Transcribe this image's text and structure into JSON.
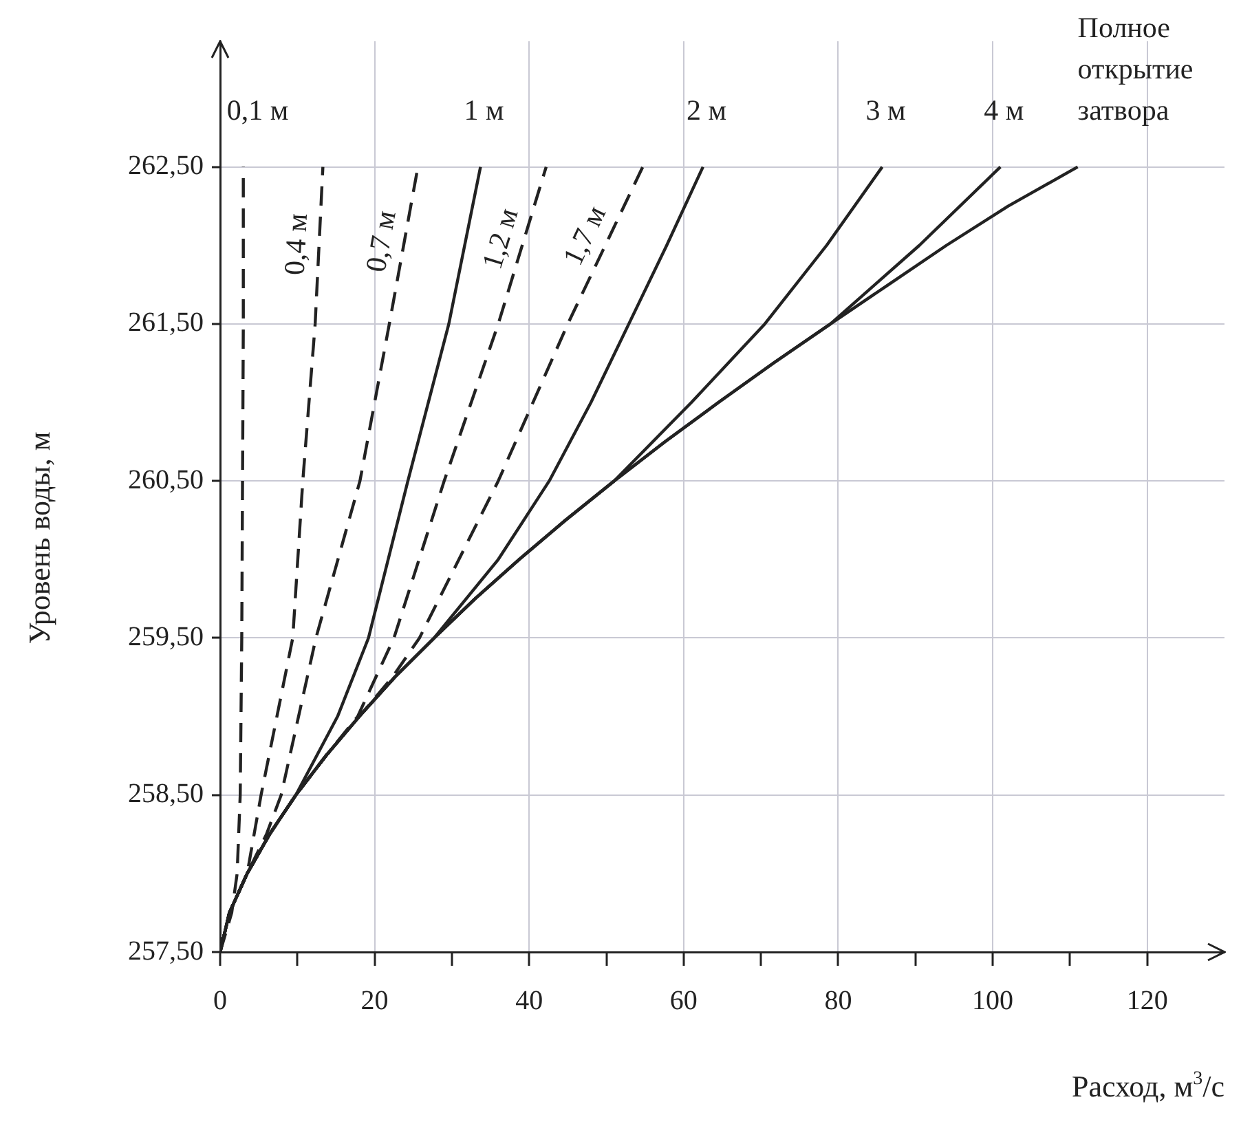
{
  "chart_data": {
    "type": "line",
    "xlabel": "Расход, м$^{3}$/с",
    "ylabel": "Уровень воды, м",
    "xlim": [
      0,
      130
    ],
    "xticks": [
      0,
      {
        "value": 10,
        "label": null
      },
      20,
      {
        "value": 30,
        "label": null
      },
      40,
      {
        "value": 50,
        "label": null
      },
      60,
      {
        "value": 70,
        "label": null
      },
      80,
      {
        "value": 90,
        "label": null
      },
      100,
      {
        "value": 110,
        "label": null
      },
      120
    ],
    "ylim": [
      257.5,
      263.3
    ],
    "yticks": [
      {
        "value": 257.5,
        "label": "257,50"
      },
      {
        "value": 258.5,
        "label": "258,50"
      },
      {
        "value": 259.5,
        "label": "259,50"
      },
      {
        "value": 260.5,
        "label": "260,50"
      },
      {
        "value": 261.5,
        "label": "261,50"
      },
      {
        "value": 262.5,
        "label": "262,50"
      }
    ],
    "grid": true,
    "legend": false,
    "marker": "none",
    "series": [
      {
        "name": "0,1 м",
        "color": "#222222",
        "line_style": "dashed",
        "x": [
          0,
          1.5,
          2.2,
          2.6,
          2.8,
          2.9,
          3.0,
          3.0
        ],
        "values": [
          257.5,
          257.75,
          258,
          258.5,
          259.5,
          260.5,
          261.5,
          262.5
        ]
      },
      {
        "name": "0,4 м",
        "color": "#222222",
        "line_style": "dashed",
        "x": [
          0,
          1.2,
          3.5,
          5.3,
          9.4,
          10.7,
          12.3,
          13.3
        ],
        "values": [
          257.5,
          257.75,
          258,
          258.5,
          259.5,
          260.5,
          261.5,
          262.5
        ]
      },
      {
        "name": "0,7 м",
        "color": "#222222",
        "line_style": "dashed",
        "x": [
          0,
          1.2,
          3.5,
          6.0,
          7.9,
          12.4,
          18.1,
          21.9,
          25.6
        ],
        "values": [
          257.5,
          257.75,
          258,
          258.25,
          258.5,
          259.5,
          260.5,
          261.5,
          262.5
        ]
      },
      {
        "name": "1 м",
        "color": "#222222",
        "line_style": "solid",
        "x": [
          0,
          1.2,
          3.5,
          6.4,
          9.8,
          15.2,
          19.2,
          24.3,
          29.6,
          33.7
        ],
        "values": [
          257.5,
          257.75,
          258,
          258.25,
          258.5,
          259,
          259.5,
          260.5,
          261.5,
          262.5
        ]
      },
      {
        "name": "1,2 м",
        "color": "#222222",
        "line_style": "dashed",
        "x": [
          0,
          1.2,
          3.5,
          6.4,
          9.8,
          13.7,
          17.8,
          22.5,
          29,
          36,
          42.2
        ],
        "values": [
          257.5,
          257.75,
          258,
          258.25,
          258.5,
          258.75,
          259,
          259.5,
          260.5,
          261.5,
          262.5
        ]
      },
      {
        "name": "1,7 м",
        "color": "#222222",
        "line_style": "dashed",
        "x": [
          0,
          1.2,
          3.5,
          6.4,
          9.8,
          13.7,
          18,
          22.3,
          25.8,
          36,
          45,
          54.7
        ],
        "values": [
          257.5,
          257.75,
          258,
          258.25,
          258.5,
          258.75,
          259,
          259.25,
          259.5,
          260.5,
          261.5,
          262.5
        ]
      },
      {
        "name": "2 м",
        "color": "#222222",
        "line_style": "solid",
        "x": [
          0,
          1.2,
          3.5,
          6.4,
          9.8,
          13.7,
          18,
          22.6,
          27.7,
          36,
          42.6,
          48,
          52.9,
          57.8,
          62.5
        ],
        "values": [
          257.5,
          257.75,
          258,
          258.25,
          258.5,
          258.75,
          259,
          259.25,
          259.5,
          260,
          260.5,
          261,
          261.5,
          262,
          262.5
        ]
      },
      {
        "name": "3 м",
        "color": "#222222",
        "line_style": "solid",
        "x": [
          0,
          1.2,
          3.5,
          6.4,
          9.8,
          13.7,
          18,
          22.6,
          27.7,
          33,
          38.7,
          44.7,
          51,
          61,
          70.5,
          78.5,
          85.7
        ],
        "values": [
          257.5,
          257.75,
          258,
          258.25,
          258.5,
          258.75,
          259,
          259.25,
          259.5,
          259.75,
          260,
          260.25,
          260.5,
          261,
          261.5,
          262,
          262.5
        ]
      },
      {
        "name": "4 м",
        "color": "#222222",
        "line_style": "solid",
        "x": [
          0,
          1.2,
          3.5,
          6.4,
          9.8,
          13.7,
          18,
          22.6,
          27.7,
          33,
          38.7,
          44.7,
          51,
          57.6,
          64.5,
          71.6,
          79,
          90.5,
          101
        ],
        "values": [
          257.5,
          257.75,
          258,
          258.25,
          258.5,
          258.75,
          259,
          259.25,
          259.5,
          259.75,
          260,
          260.25,
          260.5,
          260.75,
          261,
          261.25,
          261.5,
          262,
          262.5
        ]
      },
      {
        "name": "Полное открытие затвора",
        "color": "#222222",
        "line_style": "solid",
        "x": [
          0,
          1.2,
          3.5,
          6.4,
          9.8,
          13.7,
          18,
          22.6,
          27.7,
          33,
          38.7,
          44.7,
          51,
          57.6,
          64.5,
          71.6,
          79,
          86.5,
          94,
          102,
          111
        ],
        "values": [
          257.5,
          257.75,
          258,
          258.25,
          258.5,
          258.75,
          259,
          259.25,
          259.5,
          259.75,
          260,
          260.25,
          260.5,
          260.75,
          261,
          261.25,
          261.5,
          261.75,
          262,
          262.25,
          262.5
        ]
      }
    ]
  }
}
